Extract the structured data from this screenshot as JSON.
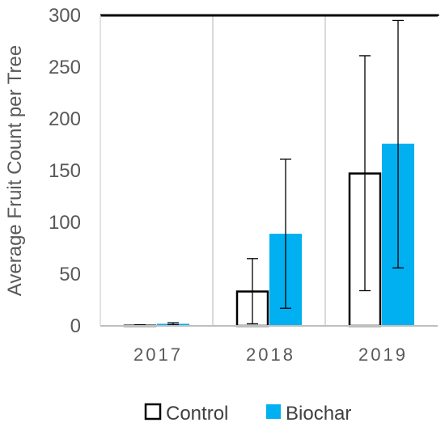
{
  "chart_data": {
    "type": "bar",
    "categories": [
      "2017",
      "2018",
      "2019"
    ],
    "series": [
      {
        "name": "Control",
        "values": [
          1,
          34,
          148
        ],
        "err_low": [
          1,
          2,
          34
        ],
        "err_high": [
          1,
          65,
          261
        ],
        "color": "#ffffff",
        "stroke": "#000000"
      },
      {
        "name": "Biochar",
        "values": [
          2,
          89,
          176
        ],
        "err_low": [
          1,
          17,
          56
        ],
        "err_high": [
          3,
          161,
          295
        ],
        "color": "#00b0f0",
        "stroke": "#00b0f0"
      }
    ],
    "ylabel": "Average Fruit Count per Tree",
    "ylim": [
      0,
      300
    ],
    "yticks": [
      0,
      50,
      100,
      150,
      200,
      250,
      300
    ],
    "grid": "vertical-separators",
    "legend_position": "bottom"
  }
}
